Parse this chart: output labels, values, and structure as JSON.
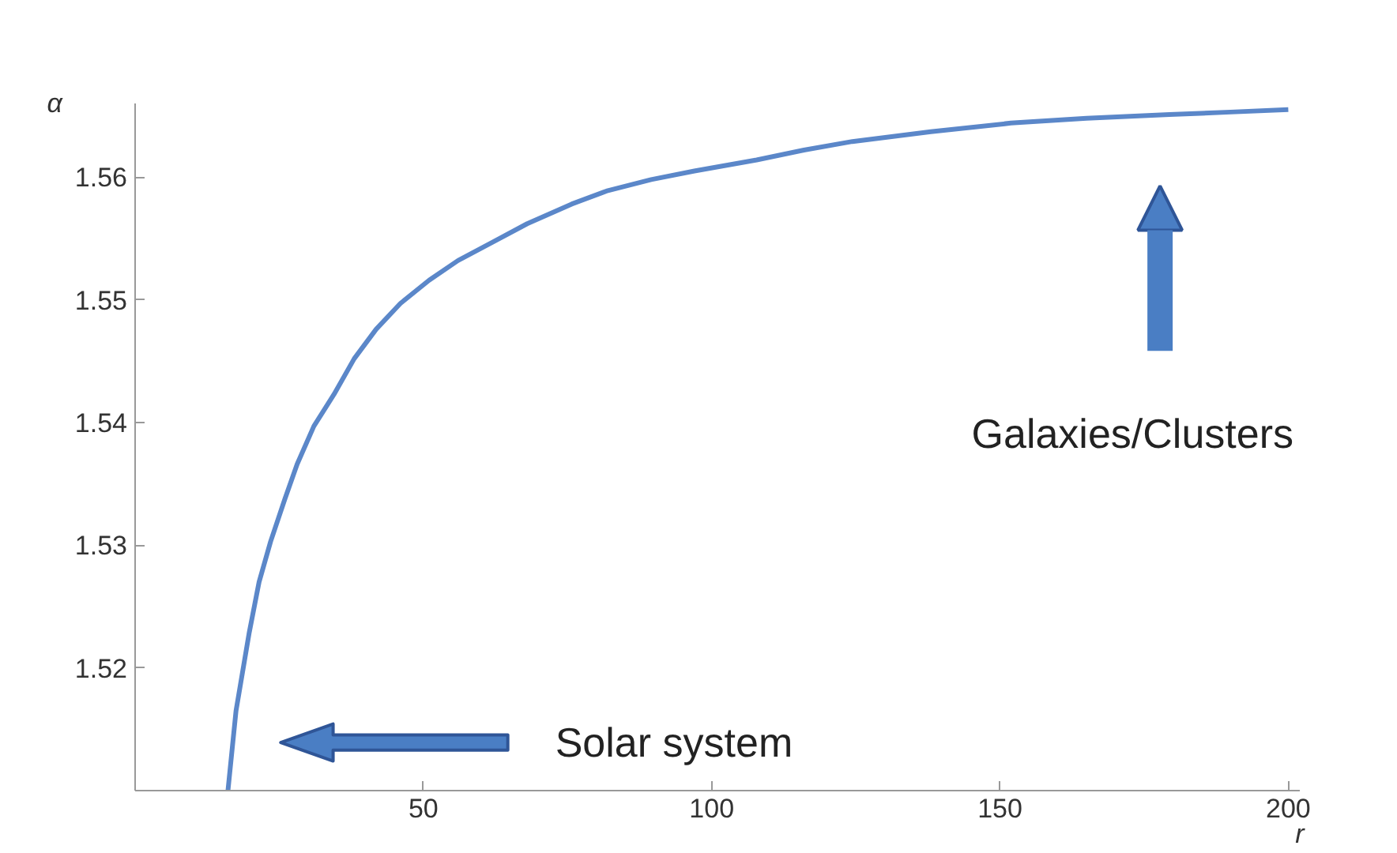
{
  "chart_data": {
    "type": "line",
    "xlabel": "r",
    "ylabel": "α",
    "xlim": [
      0,
      202
    ],
    "ylim": [
      1.51,
      1.566
    ],
    "xticks": [
      50,
      100,
      150,
      200
    ],
    "yticks": [
      1.52,
      1.53,
      1.54,
      1.55,
      1.56
    ],
    "grid": false,
    "marker": "none",
    "line_style": "solid",
    "series": [
      {
        "color": "#5b87c9",
        "x": [
          16.1,
          17.5,
          19.8,
          21.5,
          23.5,
          26,
          28.1,
          31,
          34.5,
          38,
          41.8,
          46,
          51,
          56,
          62,
          68,
          75.7,
          82,
          89.5,
          97,
          107.8,
          116,
          124.4,
          138,
          151.9,
          165,
          179.4,
          190,
          200
        ],
        "values": [
          1.51,
          1.5165,
          1.5229,
          1.527,
          1.5303,
          1.5338,
          1.5366,
          1.5397,
          1.5423,
          1.5452,
          1.5476,
          1.5497,
          1.5516,
          1.5532,
          1.5547,
          1.5562,
          1.5578,
          1.5589,
          1.5598,
          1.5605,
          1.5614,
          1.5622,
          1.5629,
          1.5637,
          1.5644,
          1.5648,
          1.5651,
          1.5653,
          1.5655
        ]
      }
    ],
    "annotations": [
      "Solar system",
      "Galaxies/Clusters"
    ]
  }
}
